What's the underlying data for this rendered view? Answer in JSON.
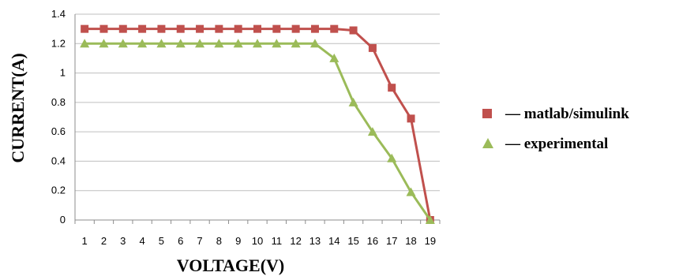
{
  "chart_data": {
    "type": "line",
    "xlabel": "VOLTAGE(V)",
    "ylabel": "CURRENT(A)",
    "x": [
      1,
      2,
      3,
      4,
      5,
      6,
      7,
      8,
      9,
      10,
      11,
      12,
      13,
      14,
      15,
      16,
      17,
      18,
      19
    ],
    "x_ticks": [
      "1",
      "2",
      "3",
      "4",
      "5",
      "6",
      "7",
      "8",
      "9",
      "10",
      "11",
      "12",
      "13",
      "14",
      "15",
      "16",
      "17",
      "18",
      "19"
    ],
    "y_ticks": [
      "0",
      "0.2",
      "0.4",
      "0.6",
      "0.8",
      "1",
      "1.2",
      "1.4"
    ],
    "ylim": [
      0,
      1.4
    ],
    "grid": "horizontal",
    "legend_position": "right",
    "series": [
      {
        "name": "matlab/simulink",
        "legend_label": "— matlab/simulink",
        "color": "#C0504D",
        "marker": "square",
        "values": [
          1.3,
          1.3,
          1.3,
          1.3,
          1.3,
          1.3,
          1.3,
          1.3,
          1.3,
          1.3,
          1.3,
          1.3,
          1.3,
          1.3,
          1.29,
          1.17,
          0.9,
          0.69,
          0
        ]
      },
      {
        "name": "experimental",
        "legend_label": "— experimental",
        "color": "#9BBB59",
        "marker": "triangle",
        "values": [
          1.2,
          1.2,
          1.2,
          1.2,
          1.2,
          1.2,
          1.2,
          1.2,
          1.2,
          1.2,
          1.2,
          1.2,
          1.2,
          1.1,
          0.8,
          0.6,
          0.42,
          0.19,
          0
        ]
      }
    ]
  }
}
